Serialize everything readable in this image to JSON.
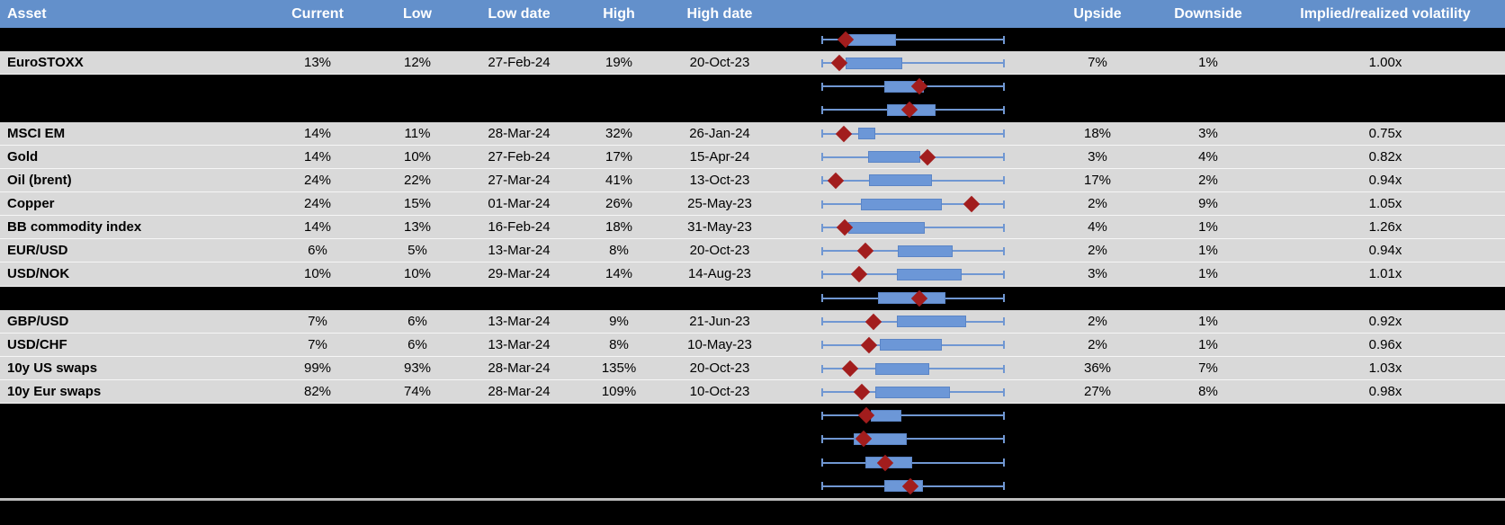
{
  "header": {
    "columns": [
      "Asset",
      "Current",
      "Low",
      "Low date",
      "High",
      "High date",
      "Upside",
      "Downside",
      "Implied/realized volatility"
    ]
  },
  "colors": {
    "header_bg": "#6390CB",
    "row_bg": "#D9D9D9",
    "hidden_row_bg": "#000000",
    "whisker": "#7097D2",
    "box_fill": "#6C97D7",
    "marker": "#A21D1D",
    "footer_line": "#BDBDBD"
  },
  "rows": [
    {
      "type": "hidden",
      "plot": {
        "box": [
          0.147,
          0.407
        ],
        "marker": 0.132
      }
    },
    {
      "type": "data",
      "asset": "EuroSTOXX",
      "current": "13%",
      "low": "12%",
      "low_date": "27-Feb-24",
      "high": "19%",
      "high_date": "20-Oct-23",
      "upside": "7%",
      "downside": "1%",
      "implied_realized": "1.00x",
      "plot": {
        "box": [
          0.132,
          0.441
        ],
        "marker": 0.098
      }
    },
    {
      "type": "hidden",
      "plot": {
        "box": [
          0.343,
          0.559
        ],
        "marker": 0.534
      }
    },
    {
      "type": "hidden",
      "plot": {
        "box": [
          0.358,
          0.623
        ],
        "marker": 0.48
      }
    },
    {
      "type": "data",
      "asset": "MSCI EM",
      "current": "14%",
      "low": "11%",
      "low_date": "28-Mar-24",
      "high": "32%",
      "high_date": "26-Jan-24",
      "upside": "18%",
      "downside": "3%",
      "implied_realized": "0.75x",
      "plot": {
        "box": [
          0.201,
          0.294
        ],
        "marker": 0.123
      }
    },
    {
      "type": "data",
      "asset": "Gold",
      "current": "14%",
      "low": "10%",
      "low_date": "27-Feb-24",
      "high": "17%",
      "high_date": "15-Apr-24",
      "upside": "3%",
      "downside": "4%",
      "implied_realized": "0.82x",
      "plot": {
        "box": [
          0.255,
          0.539
        ],
        "marker": 0.578
      }
    },
    {
      "type": "data",
      "asset": "Oil (brent)",
      "current": "24%",
      "low": "22%",
      "low_date": "27-Mar-24",
      "high": "41%",
      "high_date": "13-Oct-23",
      "upside": "17%",
      "downside": "2%",
      "implied_realized": "0.94x",
      "plot": {
        "box": [
          0.26,
          0.603
        ],
        "marker": 0.078
      }
    },
    {
      "type": "data",
      "asset": "Copper",
      "current": "24%",
      "low": "15%",
      "low_date": "01-Mar-24",
      "high": "26%",
      "high_date": "25-May-23",
      "upside": "2%",
      "downside": "9%",
      "implied_realized": "1.05x",
      "plot": {
        "box": [
          0.216,
          0.657
        ],
        "marker": 0.819
      }
    },
    {
      "type": "data",
      "asset": "BB commodity index",
      "current": "14%",
      "low": "13%",
      "low_date": "16-Feb-24",
      "high": "18%",
      "high_date": "31-May-23",
      "upside": "4%",
      "downside": "1%",
      "implied_realized": "1.26x",
      "plot": {
        "box": [
          0.147,
          0.564
        ],
        "marker": 0.127
      }
    },
    {
      "type": "data",
      "asset": "EUR/USD",
      "current": "6%",
      "low": "5%",
      "low_date": "13-Mar-24",
      "high": "8%",
      "high_date": "20-Oct-23",
      "upside": "2%",
      "downside": "1%",
      "implied_realized": "0.94x",
      "plot": {
        "box": [
          0.417,
          0.716
        ],
        "marker": 0.24
      }
    },
    {
      "type": "data",
      "asset": "USD/NOK",
      "current": "10%",
      "low": "10%",
      "low_date": "29-Mar-24",
      "high": "14%",
      "high_date": "14-Aug-23",
      "upside": "3%",
      "downside": "1%",
      "implied_realized": "1.01x",
      "plot": {
        "box": [
          0.412,
          0.765
        ],
        "marker": 0.206
      }
    },
    {
      "type": "hidden",
      "plot": {
        "box": [
          0.309,
          0.677
        ],
        "marker": 0.534
      }
    },
    {
      "type": "data",
      "asset": "GBP/USD",
      "current": "7%",
      "low": "6%",
      "low_date": "13-Mar-24",
      "high": "9%",
      "high_date": "21-Jun-23",
      "upside": "2%",
      "downside": "1%",
      "implied_realized": "0.92x",
      "plot": {
        "box": [
          0.412,
          0.789
        ],
        "marker": 0.284
      }
    },
    {
      "type": "data",
      "asset": "USD/CHF",
      "current": "7%",
      "low": "6%",
      "low_date": "13-Mar-24",
      "high": "8%",
      "high_date": "10-May-23",
      "upside": "2%",
      "downside": "1%",
      "implied_realized": "0.96x",
      "plot": {
        "box": [
          0.319,
          0.657
        ],
        "marker": 0.26
      }
    },
    {
      "type": "data",
      "asset": "10y US swaps",
      "current": "99%",
      "low": "93%",
      "low_date": "28-Mar-24",
      "high": "135%",
      "high_date": "20-Oct-23",
      "upside": "36%",
      "downside": "7%",
      "implied_realized": "1.03x",
      "plot": {
        "box": [
          0.294,
          0.588
        ],
        "marker": 0.157
      }
    },
    {
      "type": "data",
      "asset": "10y Eur swaps",
      "current": "82%",
      "low": "74%",
      "low_date": "28-Mar-24",
      "high": "109%",
      "high_date": "10-Oct-23",
      "upside": "27%",
      "downside": "8%",
      "implied_realized": "0.98x",
      "plot": {
        "box": [
          0.294,
          0.701
        ],
        "marker": 0.221
      }
    },
    {
      "type": "hidden",
      "plot": {
        "box": [
          0.27,
          0.436
        ],
        "marker": 0.245
      }
    },
    {
      "type": "hidden",
      "plot": {
        "box": [
          0.176,
          0.466
        ],
        "marker": 0.23
      }
    },
    {
      "type": "hidden",
      "plot": {
        "box": [
          0.24,
          0.495
        ],
        "marker": 0.348
      }
    },
    {
      "type": "hidden",
      "plot": {
        "box": [
          0.343,
          0.554
        ],
        "marker": 0.485
      }
    }
  ]
}
